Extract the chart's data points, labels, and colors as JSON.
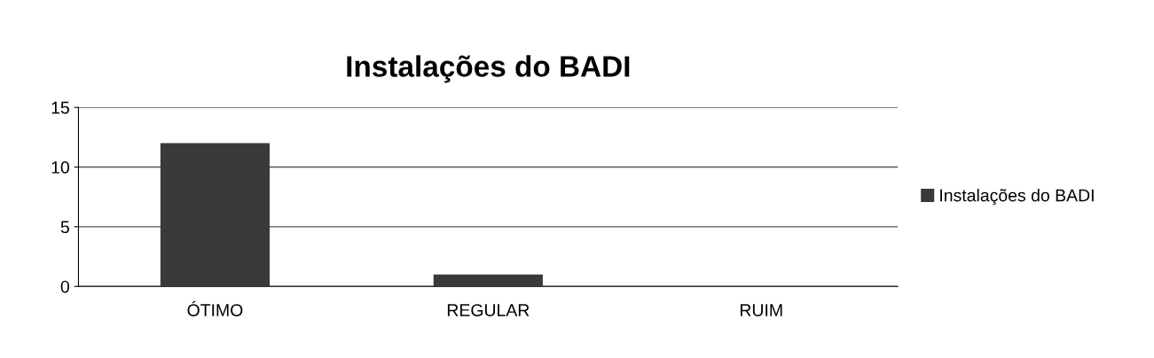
{
  "chart_data": {
    "type": "bar",
    "title": "Instalações do BADI",
    "categories": [
      "ÓTIMO",
      "REGULAR",
      "RUIM"
    ],
    "series": [
      {
        "name": "Instalações do BADI",
        "color": "#3a3a3a",
        "values": [
          12,
          1,
          0
        ]
      }
    ],
    "ylim": [
      0,
      15
    ],
    "yticks": [
      0,
      5,
      10,
      15
    ],
    "grid": "y",
    "legend": "right"
  }
}
